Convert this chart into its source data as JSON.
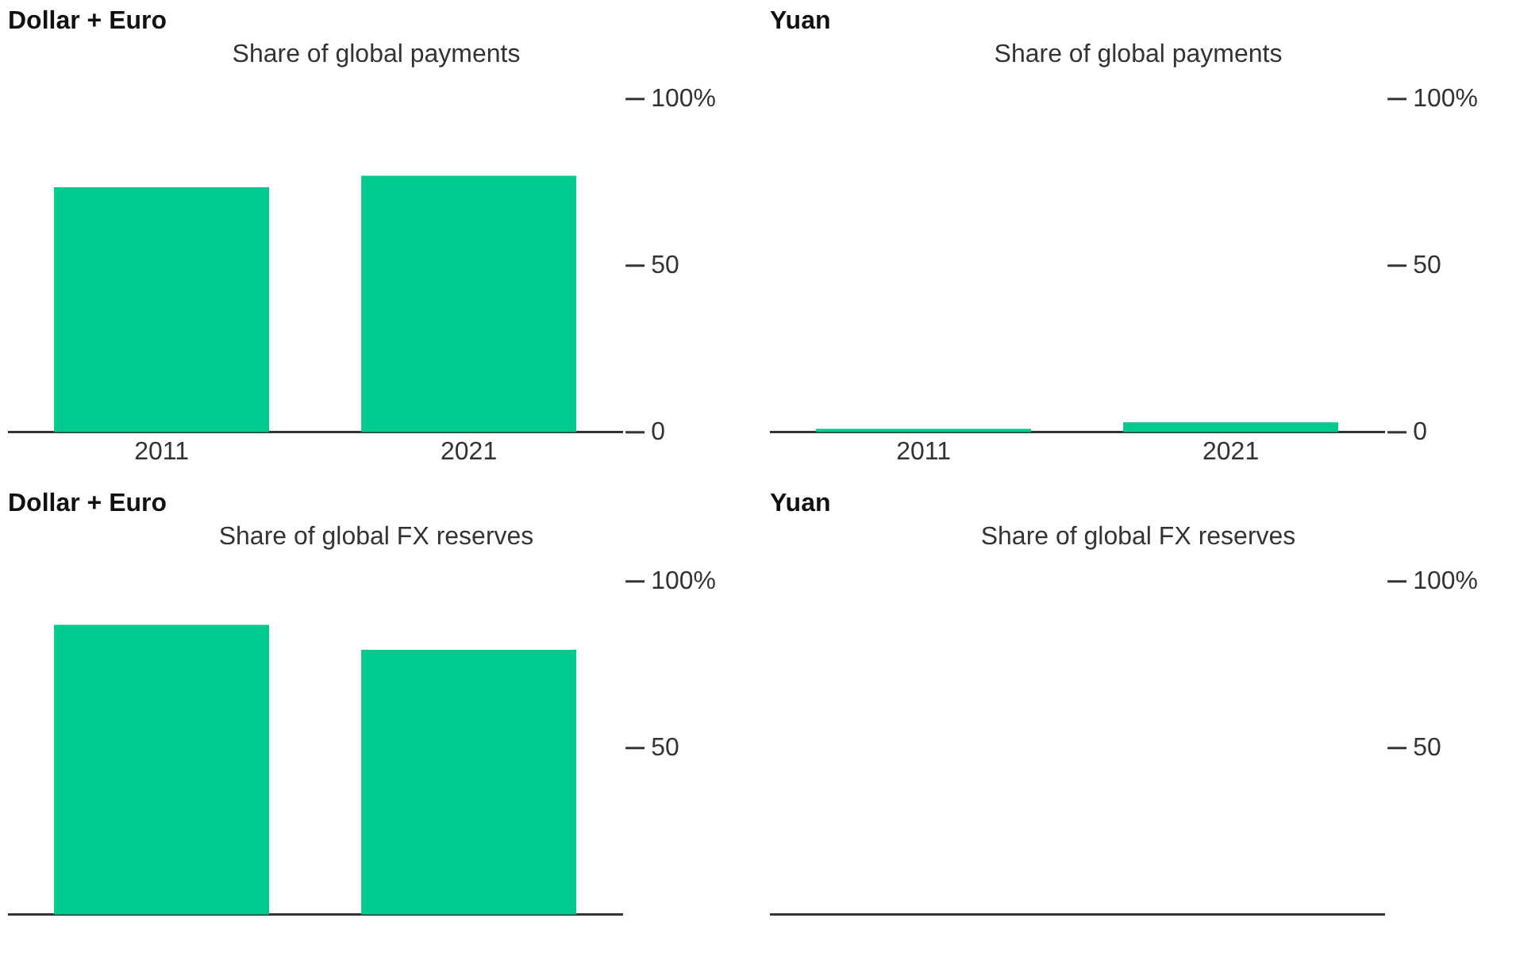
{
  "chart_data": [
    {
      "type": "bar",
      "title": "Dollar + Euro",
      "subtitle": "Share of global payments",
      "categories": [
        "2011",
        "2021"
      ],
      "values": [
        73.5,
        77
      ],
      "color": "#00c98d",
      "ylim": [
        0,
        100
      ],
      "yticks": [
        {
          "value": 0,
          "label": "0"
        },
        {
          "value": 50,
          "label": "50"
        },
        {
          "value": 100,
          "label": "100%"
        }
      ]
    },
    {
      "type": "bar",
      "title": "Yuan",
      "subtitle": "Share of global payments",
      "categories": [
        "2011",
        "2021"
      ],
      "values": [
        1,
        3
      ],
      "color": "#00c98d",
      "ylim": [
        0,
        100
      ],
      "yticks": [
        {
          "value": 0,
          "label": "0"
        },
        {
          "value": 50,
          "label": "50"
        },
        {
          "value": 100,
          "label": "100%"
        }
      ]
    },
    {
      "type": "bar",
      "title": "Dollar + Euro",
      "subtitle": "Share of global FX reserves",
      "categories": [
        null,
        null
      ],
      "values": [
        87,
        79.5
      ],
      "color": "#00c98d",
      "ylim": [
        0,
        100
      ],
      "yticks": [
        {
          "value": 50,
          "label": "50"
        },
        {
          "value": 100,
          "label": "100%"
        }
      ]
    },
    {
      "type": "bar",
      "title": "Yuan",
      "subtitle": "Share of global FX reserves",
      "categories": [
        null,
        null
      ],
      "values": [
        null,
        null
      ],
      "color": "#00c98d",
      "ylim": [
        0,
        100
      ],
      "yticks": [
        {
          "value": 50,
          "label": "50"
        },
        {
          "value": 100,
          "label": "100%"
        }
      ]
    }
  ]
}
